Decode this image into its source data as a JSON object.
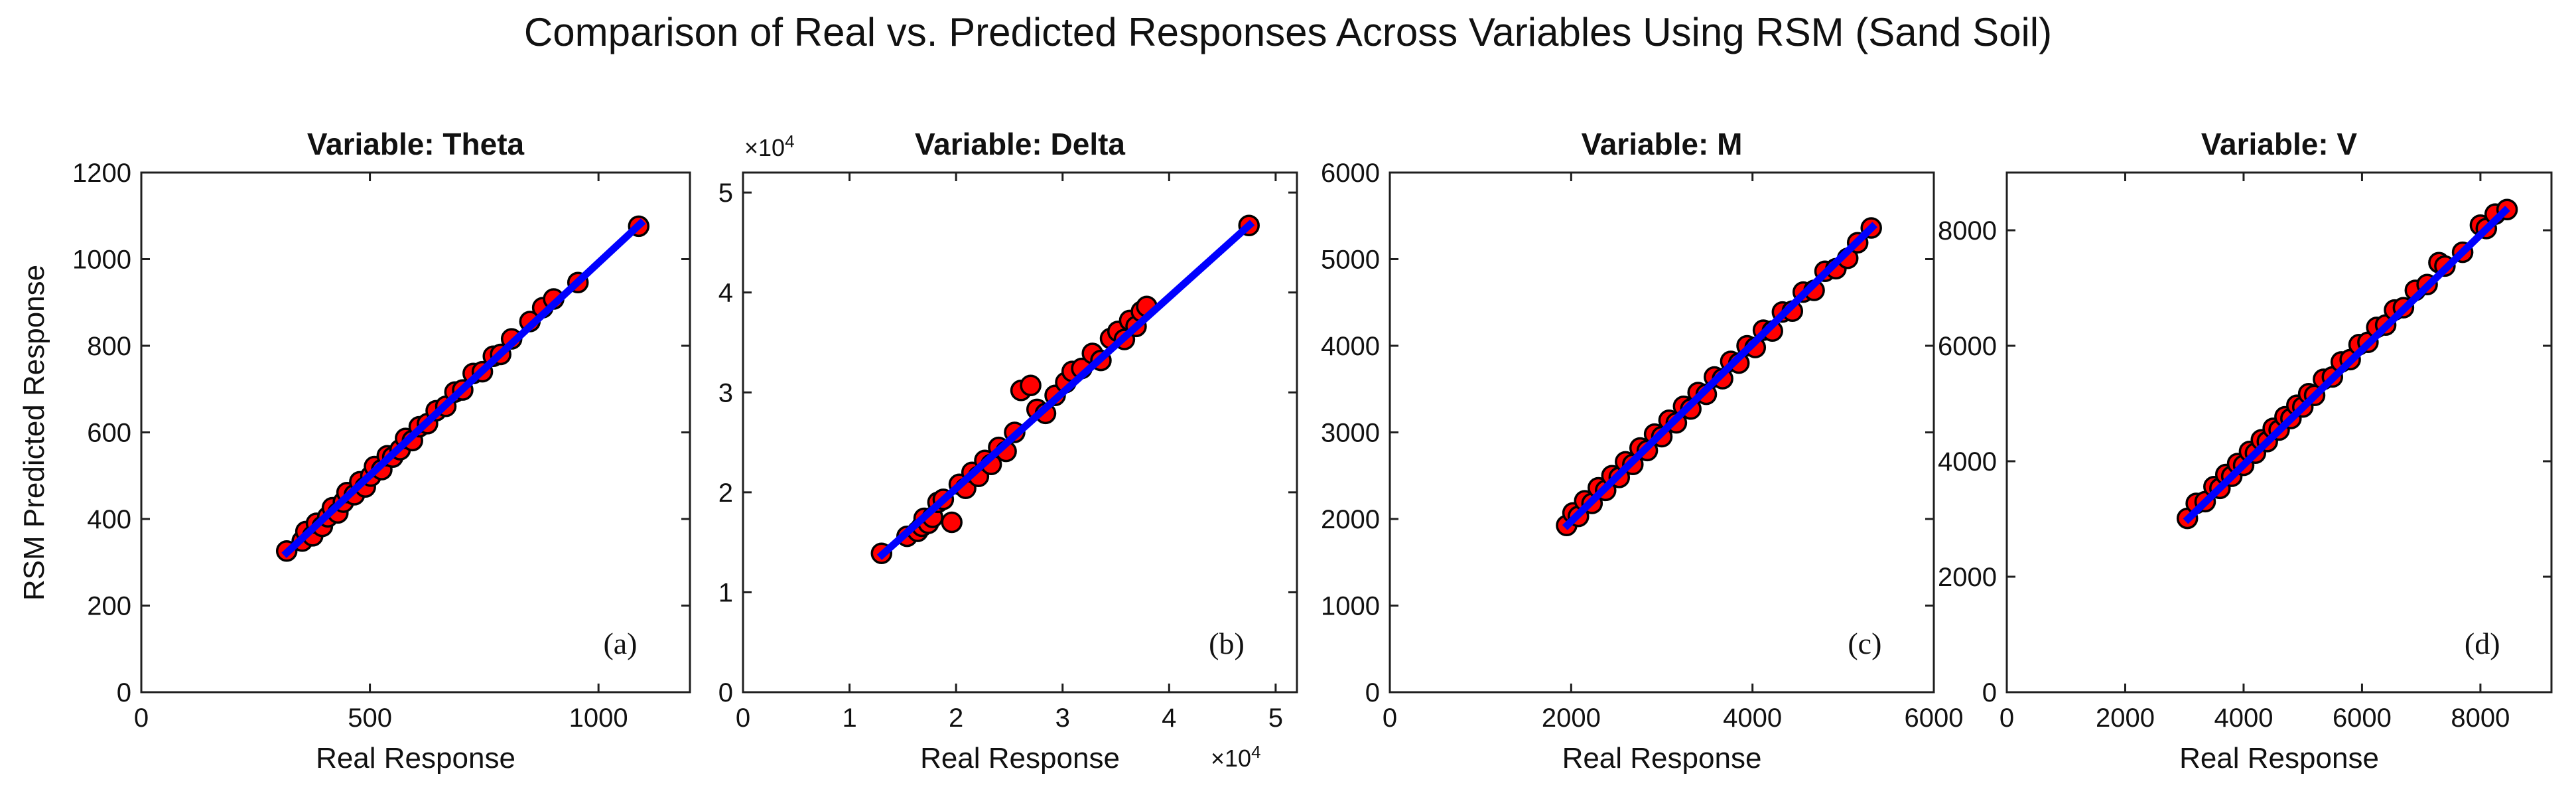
{
  "figure": {
    "suptitle": "Comparison of Real vs. Predicted Responses Across Variables Using RSM (Sand Soil)",
    "colors": {
      "marker_fill": "#ff0000",
      "marker_edge": "#000000",
      "fit_line": "#0000ff",
      "axis": "#1f1f1f",
      "text": "#111111"
    }
  },
  "chart_data": [
    {
      "type": "scatter",
      "title": "Variable: Theta",
      "xlabel": "Real Response",
      "ylabel": "RSM Predicted Response",
      "annotation": "(a)",
      "legend_position": "none",
      "grid": false,
      "xlim": [
        0,
        1200
      ],
      "ylim": [
        0,
        1200
      ],
      "xticks": [
        0,
        500,
        1000
      ],
      "xtick_labels": [
        "0",
        "500",
        "1000"
      ],
      "yticks": [
        0,
        200,
        400,
        600,
        800,
        1000,
        1200
      ],
      "ytick_labels": [
        "0",
        "200",
        "400",
        "600",
        "800",
        "1000",
        "1200"
      ],
      "x_multiplier": null,
      "y_multiplier": null,
      "fit_line": {
        "x": [
          312,
          1098
        ],
        "y": [
          316,
          1088
        ]
      },
      "points": [
        [
          318,
          326
        ],
        [
          352,
          349
        ],
        [
          360,
          371
        ],
        [
          375,
          361
        ],
        [
          383,
          390
        ],
        [
          396,
          383
        ],
        [
          408,
          405
        ],
        [
          418,
          426
        ],
        [
          430,
          414
        ],
        [
          442,
          439
        ],
        [
          450,
          461
        ],
        [
          466,
          456
        ],
        [
          478,
          486
        ],
        [
          490,
          474
        ],
        [
          502,
          499
        ],
        [
          510,
          521
        ],
        [
          526,
          514
        ],
        [
          538,
          546
        ],
        [
          550,
          543
        ],
        [
          566,
          560
        ],
        [
          578,
          586
        ],
        [
          593,
          581
        ],
        [
          608,
          613
        ],
        [
          626,
          620
        ],
        [
          645,
          650
        ],
        [
          666,
          660
        ],
        [
          686,
          693
        ],
        [
          703,
          698
        ],
        [
          726,
          736
        ],
        [
          746,
          740
        ],
        [
          770,
          776
        ],
        [
          786,
          780
        ],
        [
          810,
          816
        ],
        [
          850,
          856
        ],
        [
          878,
          888
        ],
        [
          902,
          908
        ],
        [
          955,
          946
        ],
        [
          1088,
          1076
        ]
      ]
    },
    {
      "type": "scatter",
      "title": "Variable: Delta",
      "xlabel": "Real Response",
      "ylabel": "",
      "annotation": "(b)",
      "legend_position": "none",
      "grid": false,
      "xlim": [
        0,
        52000
      ],
      "ylim": [
        0,
        52000
      ],
      "xticks": [
        0,
        10000,
        20000,
        30000,
        40000,
        50000
      ],
      "xtick_labels": [
        "0",
        "1",
        "2",
        "3",
        "4",
        "5"
      ],
      "yticks": [
        0,
        10000,
        20000,
        30000,
        40000,
        50000
      ],
      "ytick_labels": [
        "0",
        "1",
        "2",
        "3",
        "4",
        "5"
      ],
      "x_multiplier": {
        "base": "×10",
        "exp": "4"
      },
      "y_multiplier": {
        "base": "×10",
        "exp": "4"
      },
      "fit_line": {
        "x": [
          12800,
          47800
        ],
        "y": [
          13500,
          47000
        ]
      },
      "points": [
        [
          13000,
          13900
        ],
        [
          15400,
          15600
        ],
        [
          16400,
          16100
        ],
        [
          16800,
          16600
        ],
        [
          17000,
          17400
        ],
        [
          17400,
          16900
        ],
        [
          17800,
          17500
        ],
        [
          18300,
          19000
        ],
        [
          18800,
          19300
        ],
        [
          19600,
          17000
        ],
        [
          20300,
          20800
        ],
        [
          20900,
          20400
        ],
        [
          21500,
          22000
        ],
        [
          22100,
          21600
        ],
        [
          22700,
          23200
        ],
        [
          23300,
          22800
        ],
        [
          24000,
          24500
        ],
        [
          24700,
          24100
        ],
        [
          25500,
          26000
        ],
        [
          26100,
          30200
        ],
        [
          27000,
          30700
        ],
        [
          27600,
          28300
        ],
        [
          28400,
          27900
        ],
        [
          29300,
          29700
        ],
        [
          30300,
          31000
        ],
        [
          30900,
          32100
        ],
        [
          31800,
          32400
        ],
        [
          32800,
          33900
        ],
        [
          33600,
          33200
        ],
        [
          34500,
          35400
        ],
        [
          35200,
          36100
        ],
        [
          35800,
          35300
        ],
        [
          36300,
          37200
        ],
        [
          36900,
          36600
        ],
        [
          37400,
          38100
        ],
        [
          37900,
          38600
        ],
        [
          47500,
          46700
        ]
      ]
    },
    {
      "type": "scatter",
      "title": "Variable: M",
      "xlabel": "Real Response",
      "ylabel": "",
      "annotation": "(c)",
      "legend_position": "none",
      "grid": false,
      "xlim": [
        0,
        6000
      ],
      "ylim": [
        0,
        6000
      ],
      "xticks": [
        0,
        2000,
        4000,
        6000
      ],
      "xtick_labels": [
        "0",
        "2000",
        "4000",
        "6000"
      ],
      "yticks": [
        0,
        1000,
        2000,
        3000,
        4000,
        5000,
        6000
      ],
      "ytick_labels": [
        "0",
        "1000",
        "2000",
        "3000",
        "4000",
        "5000",
        "6000"
      ],
      "x_multiplier": null,
      "y_multiplier": null,
      "fit_line": {
        "x": [
          1930,
          5350
        ],
        "y": [
          1900,
          5400
        ]
      },
      "points": [
        [
          1950,
          1925
        ],
        [
          2020,
          2070
        ],
        [
          2080,
          2030
        ],
        [
          2150,
          2210
        ],
        [
          2230,
          2180
        ],
        [
          2300,
          2360
        ],
        [
          2380,
          2330
        ],
        [
          2450,
          2500
        ],
        [
          2530,
          2480
        ],
        [
          2600,
          2660
        ],
        [
          2680,
          2630
        ],
        [
          2760,
          2820
        ],
        [
          2840,
          2790
        ],
        [
          2920,
          2980
        ],
        [
          3000,
          2950
        ],
        [
          3080,
          3140
        ],
        [
          3160,
          3110
        ],
        [
          3240,
          3300
        ],
        [
          3320,
          3270
        ],
        [
          3400,
          3460
        ],
        [
          3490,
          3440
        ],
        [
          3580,
          3640
        ],
        [
          3670,
          3620
        ],
        [
          3760,
          3820
        ],
        [
          3850,
          3800
        ],
        [
          3940,
          4000
        ],
        [
          4030,
          3980
        ],
        [
          4120,
          4180
        ],
        [
          4220,
          4170
        ],
        [
          4330,
          4390
        ],
        [
          4440,
          4400
        ],
        [
          4560,
          4620
        ],
        [
          4680,
          4640
        ],
        [
          4800,
          4860
        ],
        [
          4920,
          4890
        ],
        [
          5050,
          5010
        ],
        [
          5160,
          5190
        ],
        [
          5310,
          5360
        ]
      ]
    },
    {
      "type": "scatter",
      "title": "Variable: V",
      "xlabel": "Real Response",
      "ylabel": "",
      "annotation": "(d)",
      "legend_position": "none",
      "grid": false,
      "xlim": [
        0,
        9200
      ],
      "ylim": [
        0,
        9000
      ],
      "xticks": [
        0,
        2000,
        4000,
        6000,
        8000
      ],
      "xtick_labels": [
        "0",
        "2000",
        "4000",
        "6000",
        "8000"
      ],
      "yticks": [
        0,
        2000,
        4000,
        6000,
        8000
      ],
      "ytick_labels": [
        "0",
        "2000",
        "4000",
        "6000",
        "8000"
      ],
      "x_multiplier": null,
      "y_multiplier": null,
      "fit_line": {
        "x": [
          3020,
          8460
        ],
        "y": [
          2960,
          8380
        ]
      },
      "points": [
        [
          3050,
          3010
        ],
        [
          3200,
          3270
        ],
        [
          3350,
          3300
        ],
        [
          3500,
          3560
        ],
        [
          3600,
          3530
        ],
        [
          3700,
          3770
        ],
        [
          3800,
          3740
        ],
        [
          3900,
          3960
        ],
        [
          4000,
          3930
        ],
        [
          4100,
          4170
        ],
        [
          4200,
          4140
        ],
        [
          4300,
          4370
        ],
        [
          4400,
          4340
        ],
        [
          4500,
          4570
        ],
        [
          4600,
          4540
        ],
        [
          4700,
          4770
        ],
        [
          4800,
          4740
        ],
        [
          4900,
          4970
        ],
        [
          5000,
          4940
        ],
        [
          5100,
          5170
        ],
        [
          5200,
          5140
        ],
        [
          5350,
          5420
        ],
        [
          5500,
          5460
        ],
        [
          5650,
          5720
        ],
        [
          5800,
          5760
        ],
        [
          5950,
          6020
        ],
        [
          6100,
          6060
        ],
        [
          6250,
          6320
        ],
        [
          6400,
          6360
        ],
        [
          6550,
          6620
        ],
        [
          6700,
          6660
        ],
        [
          6900,
          6960
        ],
        [
          7100,
          7060
        ],
        [
          7300,
          7440
        ],
        [
          7400,
          7380
        ],
        [
          7700,
          7620
        ],
        [
          8000,
          8090
        ],
        [
          8100,
          8030
        ],
        [
          8250,
          8280
        ],
        [
          8450,
          8360
        ]
      ]
    }
  ]
}
